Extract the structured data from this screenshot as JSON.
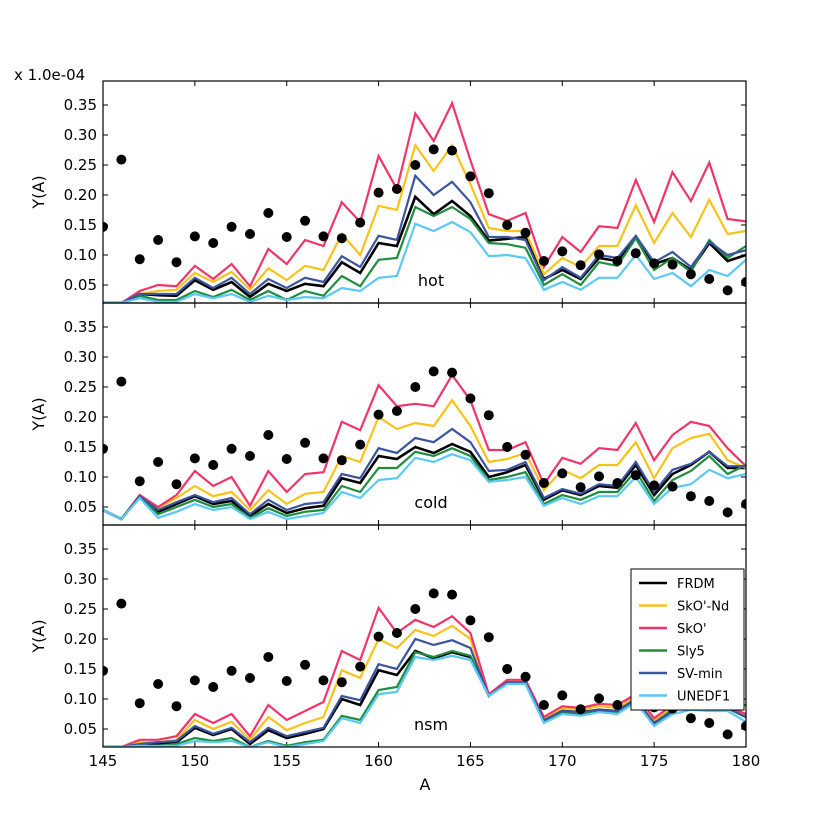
{
  "chart_data": {
    "type": "line",
    "multiplier_label": "x 1.0e-04",
    "xlabel": "A",
    "ylabel": "Y(A)",
    "xlim": [
      145,
      180
    ],
    "ylim": [
      0.02,
      0.39
    ],
    "x_ticks": [
      145,
      150,
      155,
      160,
      165,
      170,
      175,
      180
    ],
    "y_ticks": [
      0.05,
      0.1,
      0.15,
      0.2,
      0.25,
      0.3,
      0.35
    ],
    "y_tick_labels": [
      "0.05",
      "0.10",
      "0.15",
      "0.20",
      "0.25",
      "0.30",
      "0.35"
    ],
    "legend_position": "lower-right of bottom panel",
    "legend": [
      {
        "name": "FRDM",
        "color": "#000000"
      },
      {
        "name": "SkO'-Nd",
        "color": "#f7c31b"
      },
      {
        "name": "SkO'",
        "color": "#f0356b"
      },
      {
        "name": "Sly5",
        "color": "#1e8e3e"
      },
      {
        "name": "SV-min",
        "color": "#3b54a0"
      },
      {
        "name": "UNEDF1",
        "color": "#5bc8f5"
      }
    ],
    "x": [
      145,
      146,
      147,
      148,
      149,
      150,
      151,
      152,
      153,
      154,
      155,
      156,
      157,
      158,
      159,
      160,
      161,
      162,
      163,
      164,
      165,
      166,
      167,
      168,
      169,
      170,
      171,
      172,
      173,
      174,
      175,
      176,
      177,
      178,
      179,
      180
    ],
    "observed_points": {
      "x": [
        145,
        146,
        147,
        148,
        149,
        150,
        151,
        152,
        153,
        154,
        155,
        156,
        157,
        158,
        159,
        160,
        161,
        162,
        163,
        164,
        165,
        166,
        167,
        168,
        169,
        170,
        171,
        172,
        173,
        174,
        175,
        176,
        177,
        178,
        179,
        180
      ],
      "y": [
        0.147,
        0.259,
        0.093,
        0.125,
        0.088,
        0.131,
        0.12,
        0.147,
        0.135,
        0.17,
        0.13,
        0.157,
        0.131,
        0.128,
        0.154,
        0.204,
        0.21,
        0.25,
        0.276,
        0.274,
        0.231,
        0.203,
        0.15,
        0.137,
        0.09,
        0.106,
        0.083,
        0.101,
        0.09,
        0.103,
        0.086,
        0.084,
        0.068,
        0.06,
        0.041,
        0.055
      ]
    },
    "panels": [
      {
        "label": "hot",
        "series": [
          {
            "name": "FRDM",
            "color": "#000000",
            "values": [
              0.02,
              0.02,
              0.035,
              0.033,
              0.032,
              0.058,
              0.042,
              0.055,
              0.03,
              0.052,
              0.04,
              0.052,
              0.048,
              0.088,
              0.07,
              0.12,
              0.115,
              0.197,
              0.168,
              0.19,
              0.165,
              0.124,
              0.127,
              0.13,
              0.06,
              0.075,
              0.06,
              0.095,
              0.09,
              0.13,
              0.085,
              0.095,
              0.075,
              0.12,
              0.09,
              0.1
            ]
          },
          {
            "name": "SkO'-Nd",
            "color": "#f7c31b",
            "values": [
              0.02,
              0.02,
              0.035,
              0.04,
              0.042,
              0.07,
              0.055,
              0.072,
              0.042,
              0.078,
              0.058,
              0.082,
              0.075,
              0.135,
              0.1,
              0.182,
              0.175,
              0.283,
              0.24,
              0.283,
              0.218,
              0.145,
              0.14,
              0.14,
              0.068,
              0.095,
              0.08,
              0.115,
              0.115,
              0.183,
              0.12,
              0.17,
              0.13,
              0.192,
              0.135,
              0.14
            ]
          },
          {
            "name": "SkO'",
            "color": "#f0356b",
            "values": [
              0.02,
              0.02,
              0.04,
              0.05,
              0.048,
              0.082,
              0.06,
              0.085,
              0.048,
              0.11,
              0.085,
              0.125,
              0.115,
              0.188,
              0.155,
              0.265,
              0.21,
              0.336,
              0.29,
              0.353,
              0.258,
              0.168,
              0.157,
              0.17,
              0.08,
              0.13,
              0.105,
              0.148,
              0.145,
              0.225,
              0.155,
              0.238,
              0.19,
              0.254,
              0.16,
              0.156
            ]
          },
          {
            "name": "Sly5",
            "color": "#1e8e3e",
            "values": [
              0.02,
              0.02,
              0.032,
              0.025,
              0.025,
              0.04,
              0.03,
              0.042,
              0.025,
              0.04,
              0.025,
              0.04,
              0.032,
              0.065,
              0.048,
              0.092,
              0.095,
              0.18,
              0.165,
              0.18,
              0.16,
              0.12,
              0.118,
              0.112,
              0.05,
              0.068,
              0.05,
              0.088,
              0.082,
              0.128,
              0.075,
              0.095,
              0.072,
              0.125,
              0.095,
              0.115
            ]
          },
          {
            "name": "SV-min",
            "color": "#3b54a0",
            "values": [
              0.02,
              0.02,
              0.035,
              0.035,
              0.035,
              0.062,
              0.045,
              0.062,
              0.035,
              0.06,
              0.045,
              0.062,
              0.055,
              0.098,
              0.08,
              0.132,
              0.125,
              0.232,
              0.2,
              0.222,
              0.188,
              0.13,
              0.13,
              0.125,
              0.058,
              0.08,
              0.062,
              0.1,
              0.095,
              0.132,
              0.088,
              0.105,
              0.08,
              0.122,
              0.1,
              0.108
            ]
          },
          {
            "name": "UNEDF1",
            "color": "#5bc8f5",
            "values": [
              0.02,
              0.02,
              0.028,
              0.022,
              0.022,
              0.035,
              0.028,
              0.035,
              0.022,
              0.032,
              0.025,
              0.03,
              0.028,
              0.045,
              0.04,
              0.062,
              0.065,
              0.152,
              0.14,
              0.155,
              0.138,
              0.098,
              0.1,
              0.095,
              0.042,
              0.055,
              0.042,
              0.062,
              0.062,
              0.1,
              0.06,
              0.07,
              0.048,
              0.075,
              0.065,
              0.092
            ]
          }
        ]
      },
      {
        "label": "cold",
        "series": [
          {
            "name": "FRDM",
            "color": "#000000",
            "values": [
              0.045,
              0.03,
              0.068,
              0.042,
              0.055,
              0.068,
              0.055,
              0.06,
              0.035,
              0.055,
              0.04,
              0.048,
              0.052,
              0.098,
              0.09,
              0.135,
              0.13,
              0.15,
              0.14,
              0.155,
              0.142,
              0.1,
              0.108,
              0.12,
              0.062,
              0.078,
              0.07,
              0.085,
              0.082,
              0.12,
              0.07,
              0.105,
              0.12,
              0.142,
              0.115,
              0.115
            ]
          },
          {
            "name": "SkO'-Nd",
            "color": "#f7c31b",
            "values": [
              0.045,
              0.03,
              0.07,
              0.048,
              0.065,
              0.085,
              0.068,
              0.075,
              0.045,
              0.078,
              0.055,
              0.072,
              0.075,
              0.135,
              0.125,
              0.2,
              0.18,
              0.19,
              0.185,
              0.228,
              0.185,
              0.125,
              0.13,
              0.14,
              0.078,
              0.112,
              0.098,
              0.12,
              0.12,
              0.158,
              0.098,
              0.148,
              0.165,
              0.172,
              0.128,
              0.115
            ]
          },
          {
            "name": "SkO'",
            "color": "#f0356b",
            "values": [
              0.045,
              0.03,
              0.07,
              0.05,
              0.07,
              0.11,
              0.085,
              0.1,
              0.052,
              0.11,
              0.075,
              0.105,
              0.108,
              0.192,
              0.178,
              0.253,
              0.218,
              0.222,
              0.218,
              0.27,
              0.228,
              0.145,
              0.145,
              0.158,
              0.088,
              0.132,
              0.122,
              0.148,
              0.145,
              0.19,
              0.128,
              0.17,
              0.192,
              0.185,
              0.148,
              0.118
            ]
          },
          {
            "name": "Sly5",
            "color": "#1e8e3e",
            "values": [
              0.045,
              0.03,
              0.068,
              0.038,
              0.05,
              0.062,
              0.05,
              0.055,
              0.032,
              0.048,
              0.035,
              0.042,
              0.045,
              0.085,
              0.075,
              0.115,
              0.115,
              0.142,
              0.135,
              0.148,
              0.135,
              0.095,
              0.1,
              0.108,
              0.055,
              0.07,
              0.062,
              0.075,
              0.075,
              0.11,
              0.06,
              0.095,
              0.11,
              0.135,
              0.105,
              0.12
            ]
          },
          {
            "name": "SV-min",
            "color": "#3b54a0",
            "values": [
              0.045,
              0.03,
              0.068,
              0.045,
              0.058,
              0.07,
              0.058,
              0.065,
              0.038,
              0.062,
              0.045,
              0.055,
              0.058,
              0.105,
              0.098,
              0.148,
              0.14,
              0.165,
              0.158,
              0.18,
              0.158,
              0.11,
              0.112,
              0.125,
              0.065,
              0.08,
              0.072,
              0.088,
              0.085,
              0.125,
              0.075,
              0.112,
              0.122,
              0.142,
              0.118,
              0.118
            ]
          },
          {
            "name": "UNEDF1",
            "color": "#5bc8f5",
            "values": [
              0.045,
              0.03,
              0.065,
              0.032,
              0.042,
              0.055,
              0.045,
              0.05,
              0.03,
              0.042,
              0.03,
              0.035,
              0.04,
              0.075,
              0.065,
              0.095,
              0.098,
              0.132,
              0.125,
              0.138,
              0.128,
              0.092,
              0.095,
              0.1,
              0.052,
              0.065,
              0.055,
              0.068,
              0.068,
              0.1,
              0.055,
              0.082,
              0.088,
              0.112,
              0.098,
              0.105
            ]
          }
        ]
      },
      {
        "label": "nsm",
        "series": [
          {
            "name": "FRDM",
            "color": "#000000",
            "values": [
              0.02,
              0.02,
              0.025,
              0.025,
              0.028,
              0.052,
              0.04,
              0.05,
              0.025,
              0.048,
              0.035,
              0.042,
              0.05,
              0.1,
              0.09,
              0.148,
              0.14,
              0.18,
              0.168,
              0.178,
              0.17,
              0.105,
              0.13,
              0.128,
              0.065,
              0.08,
              0.078,
              0.082,
              0.08,
              0.1,
              0.06,
              0.08,
              0.09,
              0.085,
              0.085,
              0.07
            ]
          },
          {
            "name": "SkO'-Nd",
            "color": "#f7c31b",
            "values": [
              0.02,
              0.02,
              0.028,
              0.028,
              0.032,
              0.065,
              0.05,
              0.062,
              0.032,
              0.07,
              0.048,
              0.06,
              0.07,
              0.148,
              0.135,
              0.2,
              0.185,
              0.215,
              0.205,
              0.222,
              0.2,
              0.105,
              0.13,
              0.13,
              0.068,
              0.085,
              0.082,
              0.088,
              0.085,
              0.105,
              0.065,
              0.085,
              0.092,
              0.085,
              0.085,
              0.072
            ]
          },
          {
            "name": "SkO'",
            "color": "#f0356b",
            "values": [
              0.02,
              0.02,
              0.032,
              0.032,
              0.038,
              0.075,
              0.06,
              0.075,
              0.038,
              0.09,
              0.065,
              0.08,
              0.095,
              0.18,
              0.165,
              0.252,
              0.21,
              0.232,
              0.22,
              0.238,
              0.21,
              0.108,
              0.132,
              0.132,
              0.07,
              0.088,
              0.085,
              0.092,
              0.09,
              0.108,
              0.068,
              0.09,
              0.095,
              0.088,
              0.088,
              0.075
            ]
          },
          {
            "name": "Sly5",
            "color": "#1e8e3e",
            "values": [
              0.02,
              0.02,
              0.022,
              0.022,
              0.025,
              0.035,
              0.03,
              0.035,
              0.02,
              0.03,
              0.022,
              0.028,
              0.032,
              0.072,
              0.065,
              0.115,
              0.12,
              0.178,
              0.17,
              0.18,
              0.172,
              0.105,
              0.128,
              0.125,
              0.062,
              0.078,
              0.075,
              0.08,
              0.078,
              0.098,
              0.06,
              0.082,
              0.095,
              0.092,
              0.09,
              0.09
            ]
          },
          {
            "name": "SV-min",
            "color": "#3b54a0",
            "values": [
              0.02,
              0.02,
              0.025,
              0.028,
              0.03,
              0.055,
              0.042,
              0.052,
              0.028,
              0.052,
              0.038,
              0.045,
              0.052,
              0.105,
              0.098,
              0.158,
              0.15,
              0.2,
              0.19,
              0.198,
              0.185,
              0.105,
              0.128,
              0.128,
              0.065,
              0.08,
              0.078,
              0.082,
              0.08,
              0.1,
              0.06,
              0.08,
              0.09,
              0.085,
              0.085,
              0.07
            ]
          },
          {
            "name": "UNEDF1",
            "color": "#5bc8f5",
            "values": [
              0.02,
              0.02,
              0.022,
              0.022,
              0.022,
              0.03,
              0.028,
              0.03,
              0.02,
              0.028,
              0.02,
              0.025,
              0.03,
              0.068,
              0.06,
              0.108,
              0.112,
              0.17,
              0.165,
              0.172,
              0.165,
              0.105,
              0.125,
              0.125,
              0.06,
              0.075,
              0.072,
              0.078,
              0.075,
              0.095,
              0.055,
              0.075,
              0.082,
              0.08,
              0.08,
              0.062
            ]
          }
        ]
      }
    ]
  }
}
